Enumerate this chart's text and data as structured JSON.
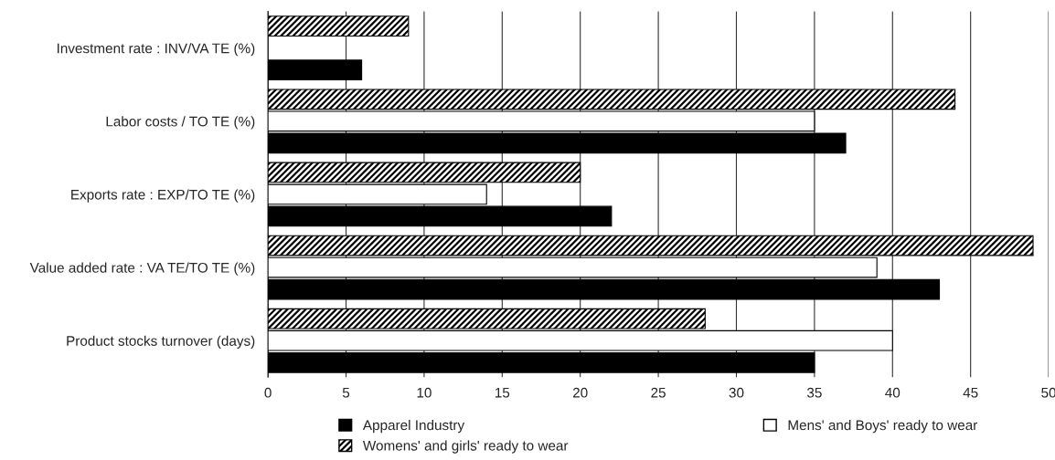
{
  "chart_data": {
    "type": "bar",
    "orientation": "horizontal",
    "categories": [
      "Investment rate : INV/VA TE (%)",
      "Labor costs / TO TE (%)",
      "Exports rate : EXP/TO TE (%)",
      "Value added rate : VA TE/TO TE (%)",
      "Product stocks turnover (days)"
    ],
    "series": [
      {
        "name": "Apparel Industry",
        "color": "#000000",
        "values": [
          6,
          37,
          22,
          43,
          35
        ]
      },
      {
        "name": "Mens' and Boys' ready to wear",
        "color": "#ffffff",
        "values": [
          null,
          35,
          14,
          39,
          40
        ]
      },
      {
        "name": "Womens' and girls' ready to wear",
        "color": "#000000",
        "values": [
          9,
          44,
          20,
          49,
          28
        ]
      }
    ],
    "xlim": [
      0,
      50
    ],
    "xticks": [
      0,
      5,
      10,
      15,
      20,
      25,
      30,
      35,
      40,
      45,
      50
    ],
    "grid": "x",
    "legend": "bottom"
  }
}
